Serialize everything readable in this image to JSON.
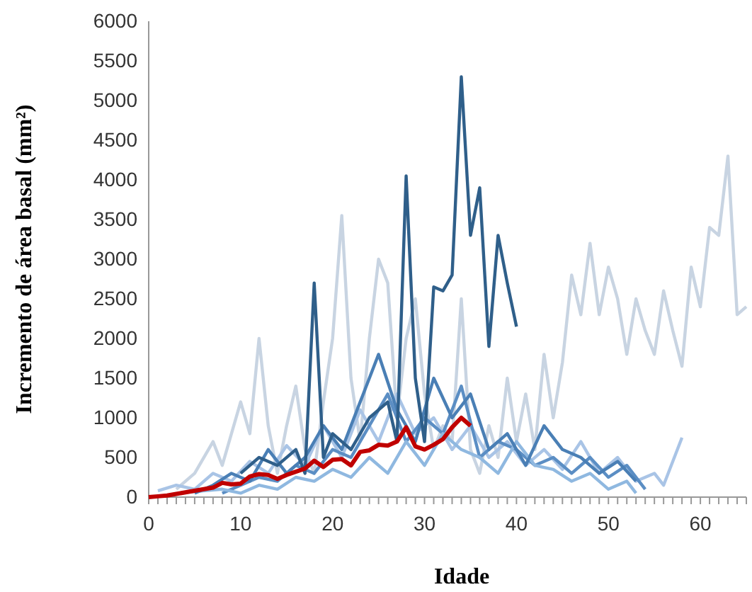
{
  "chart_data": {
    "type": "line",
    "xlabel": "Idade",
    "ylabel": "Incremento de área basal (mm²)",
    "xlim": [
      0,
      65
    ],
    "ylim": [
      0,
      6000
    ],
    "xticks": [
      0,
      {
        "value": 1,
        "label": null
      },
      {
        "value": 2,
        "label": null
      },
      {
        "value": 3,
        "label": null
      },
      {
        "value": 4,
        "label": null
      },
      {
        "value": 5,
        "label": null
      },
      {
        "value": 6,
        "label": null
      },
      {
        "value": 7,
        "label": null
      },
      {
        "value": 8,
        "label": null
      },
      {
        "value": 9,
        "label": null
      },
      10,
      {
        "value": 11,
        "label": null
      },
      {
        "value": 12,
        "label": null
      },
      {
        "value": 13,
        "label": null
      },
      {
        "value": 14,
        "label": null
      },
      {
        "value": 15,
        "label": null
      },
      {
        "value": 16,
        "label": null
      },
      {
        "value": 17,
        "label": null
      },
      {
        "value": 18,
        "label": null
      },
      {
        "value": 19,
        "label": null
      },
      20,
      {
        "value": 21,
        "label": null
      },
      {
        "value": 22,
        "label": null
      },
      {
        "value": 23,
        "label": null
      },
      {
        "value": 24,
        "label": null
      },
      {
        "value": 25,
        "label": null
      },
      {
        "value": 26,
        "label": null
      },
      {
        "value": 27,
        "label": null
      },
      {
        "value": 28,
        "label": null
      },
      {
        "value": 29,
        "label": null
      },
      30,
      {
        "value": 31,
        "label": null
      },
      {
        "value": 32,
        "label": null
      },
      {
        "value": 33,
        "label": null
      },
      {
        "value": 34,
        "label": null
      },
      {
        "value": 35,
        "label": null
      },
      {
        "value": 36,
        "label": null
      },
      {
        "value": 37,
        "label": null
      },
      {
        "value": 38,
        "label": null
      },
      {
        "value": 39,
        "label": null
      },
      40,
      {
        "value": 41,
        "label": null
      },
      {
        "value": 42,
        "label": null
      },
      {
        "value": 43,
        "label": null
      },
      {
        "value": 44,
        "label": null
      },
      {
        "value": 45,
        "label": null
      },
      {
        "value": 46,
        "label": null
      },
      {
        "value": 47,
        "label": null
      },
      {
        "value": 48,
        "label": null
      },
      {
        "value": 49,
        "label": null
      },
      50,
      {
        "value": 51,
        "label": null
      },
      {
        "value": 52,
        "label": null
      },
      {
        "value": 53,
        "label": null
      },
      {
        "value": 54,
        "label": null
      },
      {
        "value": 55,
        "label": null
      },
      {
        "value": 56,
        "label": null
      },
      {
        "value": 57,
        "label": null
      },
      {
        "value": 58,
        "label": null
      },
      {
        "value": 59,
        "label": null
      },
      60,
      {
        "value": 61,
        "label": null
      },
      {
        "value": 62,
        "label": null
      },
      {
        "value": 63,
        "label": null
      },
      {
        "value": 64,
        "label": null
      },
      {
        "value": 65,
        "label": null
      }
    ],
    "yticks": [
      0,
      500,
      1000,
      1500,
      2000,
      2500,
      3000,
      3500,
      4000,
      4500,
      5000,
      5500,
      6000
    ],
    "grid": false,
    "marker": "none",
    "line_style": "solid",
    "series": [
      {
        "color": "#c8d4e2",
        "x": [
          3,
          5,
          7,
          8,
          10,
          11,
          12,
          13,
          14,
          15,
          16,
          17,
          18,
          19,
          20,
          21,
          22,
          23,
          24,
          25,
          26,
          27,
          28,
          29,
          30,
          31,
          32,
          33,
          34,
          35,
          36,
          37,
          38,
          39,
          40,
          41,
          42,
          43,
          44,
          45,
          46,
          47,
          48,
          49,
          50,
          51,
          52,
          53,
          54,
          55,
          56,
          57,
          58,
          59,
          60,
          61,
          62,
          63,
          64,
          65
        ],
        "values": [
          100,
          300,
          700,
          400,
          1200,
          800,
          2000,
          900,
          300,
          900,
          1400,
          600,
          300,
          1200,
          2000,
          3550,
          1500,
          700,
          2000,
          3000,
          2700,
          1000,
          2000,
          2500,
          1300,
          600,
          900,
          700,
          2500,
          600,
          300,
          900,
          500,
          1500,
          700,
          1300,
          600,
          1800,
          1000,
          1700,
          2800,
          2300,
          3200,
          2300,
          2900,
          2500,
          1800,
          2500,
          2100,
          1800,
          2600,
          2100,
          1650,
          2900,
          2400,
          3400,
          3300,
          4300,
          2300,
          2400
        ]
      },
      {
        "color": "#a9c4e6",
        "x": [
          1,
          3,
          5,
          7,
          9,
          11,
          13,
          15,
          17,
          19,
          21,
          23,
          25,
          27,
          29,
          31,
          33,
          35,
          37,
          39,
          41,
          43,
          45,
          47,
          49,
          51,
          53,
          55,
          56,
          58
        ],
        "values": [
          80,
          150,
          100,
          300,
          200,
          450,
          300,
          650,
          400,
          900,
          500,
          1100,
          700,
          1300,
          800,
          1000,
          600,
          900,
          500,
          700,
          400,
          600,
          350,
          700,
          300,
          500,
          200,
          300,
          150,
          750
        ]
      },
      {
        "color": "#5b8ec4",
        "x": [
          8,
          10,
          12,
          14,
          16,
          18,
          20,
          22,
          24,
          26,
          28,
          30,
          32,
          34,
          36,
          38,
          40,
          42,
          44,
          46,
          48,
          50,
          52,
          54
        ],
        "values": [
          50,
          150,
          250,
          200,
          400,
          300,
          600,
          500,
          900,
          1300,
          700,
          1000,
          800,
          1400,
          500,
          700,
          600,
          400,
          500,
          300,
          500,
          250,
          400,
          100
        ]
      },
      {
        "color": "#8fb8e0",
        "x": [
          2,
          4,
          6,
          8,
          10,
          12,
          14,
          16,
          18,
          20,
          22,
          24,
          26,
          28,
          30,
          32,
          34,
          36,
          38,
          40,
          42,
          44,
          46,
          48,
          50,
          52,
          53
        ],
        "values": [
          20,
          60,
          80,
          100,
          50,
          150,
          100,
          250,
          200,
          350,
          250,
          500,
          300,
          700,
          400,
          800,
          600,
          500,
          300,
          700,
          400,
          350,
          200,
          300,
          100,
          200,
          50
        ]
      },
      {
        "color": "#4a7fb5",
        "x": [
          5,
          7,
          9,
          11,
          13,
          15,
          17,
          19,
          21,
          23,
          25,
          27,
          29,
          31,
          33,
          35,
          37,
          39,
          41,
          43,
          45,
          47,
          49,
          51,
          53
        ],
        "values": [
          50,
          150,
          300,
          200,
          600,
          300,
          500,
          900,
          600,
          1200,
          1800,
          1100,
          700,
          1500,
          1000,
          1300,
          600,
          800,
          400,
          900,
          600,
          500,
          300,
          450,
          200
        ]
      },
      {
        "color": "#2f5f8a",
        "x": [
          10,
          12,
          14,
          16,
          17,
          18,
          19,
          20,
          22,
          24,
          26,
          27,
          28,
          29,
          30,
          31,
          32,
          33,
          34,
          35,
          36,
          37,
          38,
          39,
          40
        ],
        "values": [
          300,
          500,
          400,
          600,
          300,
          2700,
          500,
          800,
          600,
          1000,
          1200,
          700,
          4050,
          1500,
          700,
          2650,
          2600,
          2800,
          5300,
          3300,
          3900,
          1900,
          3300,
          2700,
          2150
        ]
      },
      {
        "color": "#c00000",
        "x": [
          0,
          1,
          2,
          3,
          4,
          5,
          6,
          7,
          8,
          9,
          10,
          11,
          12,
          13,
          14,
          15,
          16,
          17,
          18,
          19,
          20,
          21,
          22,
          23,
          24,
          25,
          26,
          27,
          28,
          29,
          30,
          31,
          32,
          33,
          34,
          35
        ],
        "values": [
          0,
          10,
          20,
          40,
          60,
          80,
          100,
          120,
          180,
          160,
          170,
          260,
          290,
          280,
          230,
          280,
          320,
          360,
          460,
          380,
          470,
          480,
          400,
          570,
          590,
          660,
          650,
          700,
          880,
          640,
          600,
          660,
          730,
          880,
          1000,
          900
        ]
      }
    ]
  }
}
